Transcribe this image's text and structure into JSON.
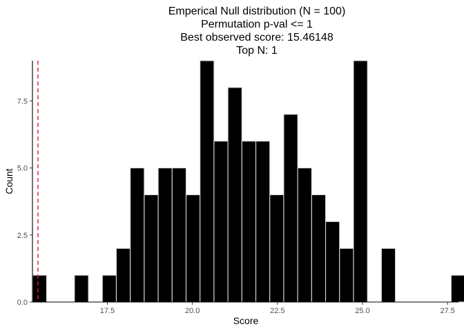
{
  "chart_data": {
    "type": "bar",
    "title_lines": [
      "Emperical Null distribution (N = 100)",
      "Permutation p-val <= 1",
      "Best observed score: 15.46148",
      "Top N: 1"
    ],
    "xlabel": "Score",
    "ylabel": "Count",
    "xlim": [
      15.3,
      27.82
    ],
    "ylim": [
      0,
      9
    ],
    "bin_width": 0.41,
    "bins": [
      {
        "x": 15.51,
        "count": 1
      },
      {
        "x": 15.92,
        "count": 0
      },
      {
        "x": 16.33,
        "count": 0
      },
      {
        "x": 16.74,
        "count": 1
      },
      {
        "x": 17.15,
        "count": 0
      },
      {
        "x": 17.56,
        "count": 1
      },
      {
        "x": 17.97,
        "count": 2
      },
      {
        "x": 18.38,
        "count": 5
      },
      {
        "x": 18.79,
        "count": 4
      },
      {
        "x": 19.2,
        "count": 5
      },
      {
        "x": 19.61,
        "count": 5
      },
      {
        "x": 20.02,
        "count": 4
      },
      {
        "x": 20.43,
        "count": 9
      },
      {
        "x": 20.84,
        "count": 6
      },
      {
        "x": 21.25,
        "count": 8
      },
      {
        "x": 21.66,
        "count": 6
      },
      {
        "x": 22.07,
        "count": 6
      },
      {
        "x": 22.48,
        "count": 4
      },
      {
        "x": 22.89,
        "count": 7
      },
      {
        "x": 23.3,
        "count": 5
      },
      {
        "x": 23.71,
        "count": 4
      },
      {
        "x": 24.12,
        "count": 3
      },
      {
        "x": 24.53,
        "count": 2
      },
      {
        "x": 24.94,
        "count": 9
      },
      {
        "x": 25.35,
        "count": 0
      },
      {
        "x": 25.76,
        "count": 2
      },
      {
        "x": 26.17,
        "count": 0
      },
      {
        "x": 26.58,
        "count": 0
      },
      {
        "x": 26.99,
        "count": 0
      },
      {
        "x": 27.4,
        "count": 0
      },
      {
        "x": 27.81,
        "count": 1
      }
    ],
    "x_ticks": [
      17.5,
      20.0,
      22.5,
      25.0,
      27.5
    ],
    "x_tick_labels": [
      "17.5",
      "20.0",
      "22.5",
      "25.0",
      "27.5"
    ],
    "y_ticks": [
      0,
      2.5,
      5,
      7.5
    ],
    "y_tick_labels": [
      "0.0",
      "2.5",
      "5.0",
      "7.5"
    ],
    "observed_score": 15.46148,
    "grid": false,
    "bar_color": "#000000",
    "bar_outline": "#d9d9d9",
    "line_color": "#e0202a"
  }
}
